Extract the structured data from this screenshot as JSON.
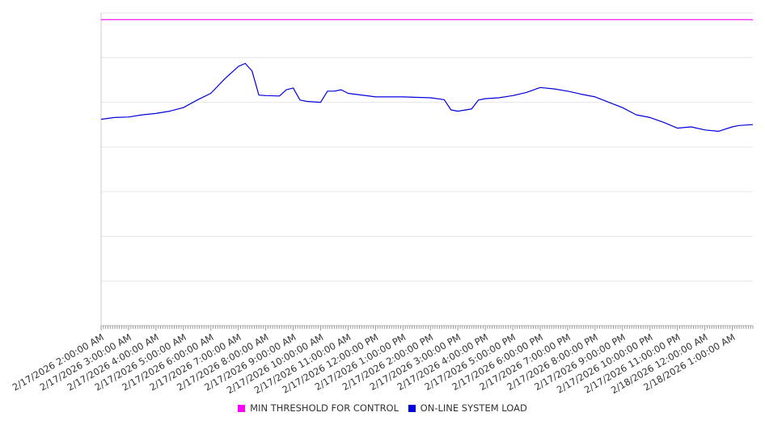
{
  "chart_data": {
    "type": "line",
    "title": "",
    "xlabel": "",
    "ylabel": "",
    "ylim": [
      0,
      7
    ],
    "y_tick_labels_shown": false,
    "grid": true,
    "legend_position": "bottom",
    "x_tick_labels": [
      "2/17/2026 2:00:00 AM",
      "2/17/2026 3:00:00 AM",
      "2/17/2026 4:00:00 AM",
      "2/17/2026 5:00:00 AM",
      "2/17/2026 6:00:00 AM",
      "2/17/2026 7:00:00 AM",
      "2/17/2026 8:00:00 AM",
      "2/17/2026 9:00:00 AM",
      "2/17/2026 10:00:00 AM",
      "2/17/2026 11:00:00 AM",
      "2/17/2026 12:00:00 PM",
      "2/17/2026 1:00:00 PM",
      "2/17/2026 2:00:00 PM",
      "2/17/2026 3:00:00 PM",
      "2/17/2026 4:00:00 PM",
      "2/17/2026 5:00:00 PM",
      "2/17/2026 6:00:00 PM",
      "2/17/2026 7:00:00 PM",
      "2/17/2026 8:00:00 PM",
      "2/17/2026 9:00:00 PM",
      "2/17/2026 10:00:00 PM",
      "2/17/2026 11:00:00 PM",
      "2/18/2026 12:00:00 AM",
      "2/18/2026 1:00:00 AM"
    ],
    "x_range": [
      "2/17/2026 2:00:00 AM",
      "2/18/2026 1:45:00 AM"
    ],
    "series": [
      {
        "name": "MIN THRESHOLD FOR CONTROL",
        "color": "#ff00ff",
        "points": [
          [
            "2/17/2026 2:00:00 AM",
            6.85
          ],
          [
            "2/18/2026 1:45:00 AM",
            6.85
          ]
        ]
      },
      {
        "name": "ON-LINE SYSTEM LOAD",
        "color": "#0000dd",
        "points": [
          [
            "2/17/2026 2:00:00 AM",
            4.62
          ],
          [
            "2/17/2026 2:30:00 AM",
            4.66
          ],
          [
            "2/17/2026 3:00:00 AM",
            4.67
          ],
          [
            "2/17/2026 3:30:00 AM",
            4.72
          ],
          [
            "2/17/2026 4:00:00 AM",
            4.75
          ],
          [
            "2/17/2026 4:30:00 AM",
            4.8
          ],
          [
            "2/17/2026 5:00:00 AM",
            4.88
          ],
          [
            "2/17/2026 5:30:00 AM",
            5.05
          ],
          [
            "2/17/2026 6:00:00 AM",
            5.2
          ],
          [
            "2/17/2026 6:30:00 AM",
            5.52
          ],
          [
            "2/17/2026 7:00:00 AM",
            5.8
          ],
          [
            "2/17/2026 7:15:00 AM",
            5.87
          ],
          [
            "2/17/2026 7:30:00 AM",
            5.7
          ],
          [
            "2/17/2026 7:45:00 AM",
            5.16
          ],
          [
            "2/17/2026 8:00:00 AM",
            5.15
          ],
          [
            "2/17/2026 8:30:00 AM",
            5.14
          ],
          [
            "2/17/2026 8:45:00 AM",
            5.28
          ],
          [
            "2/17/2026 9:00:00 AM",
            5.32
          ],
          [
            "2/17/2026 9:15:00 AM",
            5.05
          ],
          [
            "2/17/2026 9:30:00 AM",
            5.02
          ],
          [
            "2/17/2026 10:00:00 AM",
            5.0
          ],
          [
            "2/17/2026 10:15:00 AM",
            5.25
          ],
          [
            "2/17/2026 10:30:00 AM",
            5.25
          ],
          [
            "2/17/2026 10:45:00 AM",
            5.28
          ],
          [
            "2/17/2026 11:00:00 AM",
            5.2
          ],
          [
            "2/17/2026 12:00:00 PM",
            5.12
          ],
          [
            "2/17/2026 1:00:00 PM",
            5.12
          ],
          [
            "2/17/2026 2:00:00 PM",
            5.1
          ],
          [
            "2/17/2026 2:30:00 PM",
            5.06
          ],
          [
            "2/17/2026 2:45:00 PM",
            4.83
          ],
          [
            "2/17/2026 3:00:00 PM",
            4.8
          ],
          [
            "2/17/2026 3:30:00 PM",
            4.85
          ],
          [
            "2/17/2026 3:45:00 PM",
            5.05
          ],
          [
            "2/17/2026 4:00:00 PM",
            5.08
          ],
          [
            "2/17/2026 4:30:00 PM",
            5.1
          ],
          [
            "2/17/2026 5:00:00 PM",
            5.15
          ],
          [
            "2/17/2026 5:30:00 PM",
            5.22
          ],
          [
            "2/17/2026 6:00:00 PM",
            5.33
          ],
          [
            "2/17/2026 6:30:00 PM",
            5.3
          ],
          [
            "2/17/2026 7:00:00 PM",
            5.25
          ],
          [
            "2/17/2026 7:30:00 PM",
            5.18
          ],
          [
            "2/17/2026 8:00:00 PM",
            5.12
          ],
          [
            "2/17/2026 8:30:00 PM",
            5.0
          ],
          [
            "2/17/2026 9:00:00 PM",
            4.88
          ],
          [
            "2/17/2026 9:30:00 PM",
            4.72
          ],
          [
            "2/17/2026 10:00:00 PM",
            4.66
          ],
          [
            "2/17/2026 10:30:00 PM",
            4.55
          ],
          [
            "2/17/2026 11:00:00 PM",
            4.42
          ],
          [
            "2/17/2026 11:30:00 PM",
            4.45
          ],
          [
            "2/18/2026 12:00:00 AM",
            4.38
          ],
          [
            "2/18/2026 12:30:00 AM",
            4.35
          ],
          [
            "2/18/2026 1:00:00 AM",
            4.45
          ],
          [
            "2/18/2026 1:15:00 AM",
            4.48
          ],
          [
            "2/18/2026 1:45:00 AM",
            4.5
          ]
        ]
      }
    ]
  }
}
